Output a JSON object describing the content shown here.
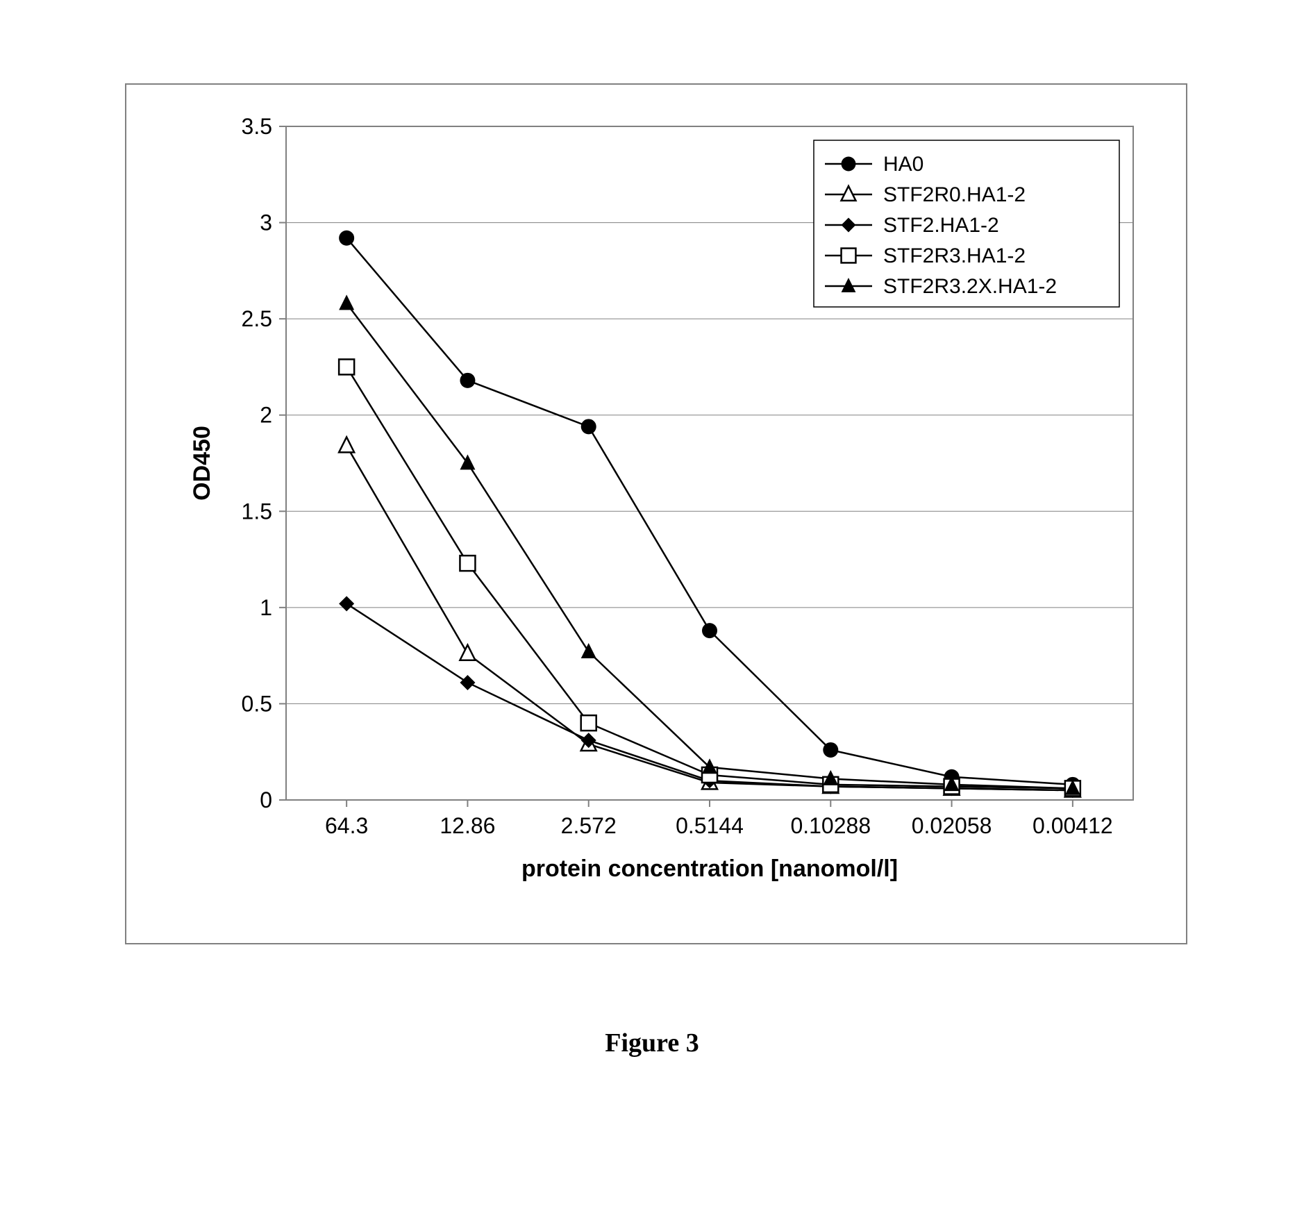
{
  "caption": "Figure 3",
  "chart": {
    "type": "line",
    "background_color": "#ffffff",
    "plot_border_color": "#808080",
    "plot_border_width": 2,
    "grid_color": "#808080",
    "grid_width": 1,
    "tick_color": "#808080",
    "label_color": "#000000",
    "series_line_color": "#000000",
    "series_line_width": 2.5,
    "axis_label_fontsize": 32,
    "axis_title_fontsize": 34,
    "legend_fontsize": 30,
    "y_axis": {
      "title": "OD450",
      "min": 0,
      "max": 3.5,
      "tick_step": 0.5,
      "ticks": [
        0,
        0.5,
        1,
        1.5,
        2,
        2.5,
        3,
        3.5
      ]
    },
    "x_axis": {
      "title": "protein concentration [nanomol/l]",
      "categories": [
        "64.3",
        "12.86",
        "2.572",
        "0.5144",
        "0.10288",
        "0.02058",
        "0.00412"
      ]
    },
    "marker_size": 11,
    "legend": {
      "border_color": "#000000",
      "background_color": "#ffffff",
      "position": "top-right"
    },
    "series": [
      {
        "name": "HA0",
        "marker": "circle-filled",
        "marker_fill": "#000000",
        "values": [
          2.92,
          2.18,
          1.94,
          0.88,
          0.26,
          0.12,
          0.08
        ]
      },
      {
        "name": "STF2R0.HA1-2",
        "marker": "triangle-open",
        "marker_fill": "none",
        "marker_stroke": "#000000",
        "values": [
          1.84,
          0.76,
          0.29,
          0.09,
          0.07,
          0.06,
          0.05
        ]
      },
      {
        "name": "STF2.HA1-2",
        "marker": "diamond-filled",
        "marker_fill": "#000000",
        "values": [
          1.02,
          0.61,
          0.31,
          0.1,
          0.07,
          0.06,
          0.05
        ]
      },
      {
        "name": "STF2R3.HA1-2",
        "marker": "square-open",
        "marker_fill": "none",
        "marker_stroke": "#000000",
        "values": [
          2.25,
          1.23,
          0.4,
          0.13,
          0.08,
          0.07,
          0.06
        ]
      },
      {
        "name": "STF2R3.2X.HA1-2",
        "marker": "triangle-filled",
        "marker_fill": "#000000",
        "values": [
          2.58,
          1.75,
          0.77,
          0.17,
          0.11,
          0.08,
          0.06
        ]
      }
    ]
  }
}
